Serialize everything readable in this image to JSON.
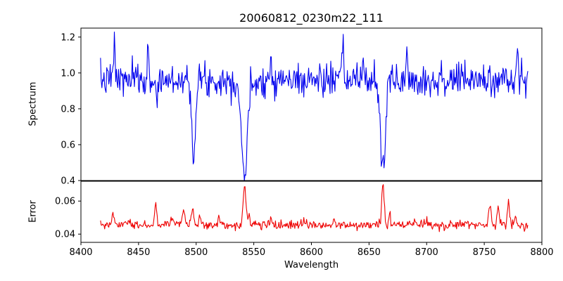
{
  "chart_data": {
    "type": "line",
    "title": "20060812_0230m22_111",
    "xlabel": "Wavelength",
    "xlim": [
      8400,
      8800
    ],
    "x_ticks": [
      8400,
      8450,
      8500,
      8550,
      8600,
      8650,
      8700,
      8750,
      8800
    ],
    "x_data_range": [
      8417,
      8788
    ],
    "x_step": 0.6,
    "seed": 7,
    "grid": false,
    "legend": "none",
    "panels": [
      {
        "name": "spectrum",
        "ylabel": "Spectrum",
        "ylim": [
          0.4,
          1.25
        ],
        "y_ticks": [
          0.4,
          0.6,
          0.8,
          1.0,
          1.2
        ],
        "line_color": "#0000ee",
        "baseline": 0.96,
        "noise_amplitude": 0.045,
        "absorption_lines": [
          {
            "center": 8498,
            "depth": 0.4,
            "sigma": 1.6
          },
          {
            "center": 8542,
            "depth": 0.53,
            "sigma": 2.6
          },
          {
            "center": 8662,
            "depth": 0.49,
            "sigma": 2.2
          }
        ],
        "noise_features": [
          {
            "center": 8429,
            "height": 0.21,
            "sigma": 0.7
          },
          {
            "center": 8458,
            "height": 0.12,
            "sigma": 0.7
          },
          {
            "center": 8466,
            "height": -0.13,
            "sigma": 0.7
          },
          {
            "center": 8565,
            "height": 0.13,
            "sigma": 0.7
          },
          {
            "center": 8627,
            "height": 0.16,
            "sigma": 0.7
          },
          {
            "center": 8645,
            "height": 0.12,
            "sigma": 0.7
          },
          {
            "center": 8683,
            "height": 0.14,
            "sigma": 0.7
          },
          {
            "center": 8779,
            "height": 0.2,
            "sigma": 0.7
          }
        ]
      },
      {
        "name": "error",
        "ylabel": "Error",
        "ylim": [
          0.035,
          0.072
        ],
        "y_ticks": [
          0.04,
          0.06
        ],
        "line_color": "#ee0000",
        "baseline": 0.045,
        "noise_amplitude": 0.0012,
        "noise_skew": 0.0008,
        "spikes": [
          {
            "center": 8428,
            "height": 0.006,
            "sigma": 1.0
          },
          {
            "center": 8442,
            "height": 0.003,
            "sigma": 0.8
          },
          {
            "center": 8465,
            "height": 0.012,
            "sigma": 0.9
          },
          {
            "center": 8479,
            "height": 0.005,
            "sigma": 0.8
          },
          {
            "center": 8489,
            "height": 0.008,
            "sigma": 1.2
          },
          {
            "center": 8497,
            "height": 0.009,
            "sigma": 1.0
          },
          {
            "center": 8503,
            "height": 0.005,
            "sigma": 0.8
          },
          {
            "center": 8520,
            "height": 0.004,
            "sigma": 0.8
          },
          {
            "center": 8542,
            "height": 0.025,
            "sigma": 1.2
          },
          {
            "center": 8546,
            "height": 0.006,
            "sigma": 0.8
          },
          {
            "center": 8565,
            "height": 0.004,
            "sigma": 0.8
          },
          {
            "center": 8594,
            "height": 0.003,
            "sigma": 0.8
          },
          {
            "center": 8620,
            "height": 0.003,
            "sigma": 0.8
          },
          {
            "center": 8662,
            "height": 0.024,
            "sigma": 1.1
          },
          {
            "center": 8668,
            "height": 0.005,
            "sigma": 0.8
          },
          {
            "center": 8700,
            "height": 0.003,
            "sigma": 0.8
          },
          {
            "center": 8735,
            "height": 0.003,
            "sigma": 0.8
          },
          {
            "center": 8755,
            "height": 0.012,
            "sigma": 1.0
          },
          {
            "center": 8762,
            "height": 0.01,
            "sigma": 0.9
          },
          {
            "center": 8771,
            "height": 0.014,
            "sigma": 0.9
          },
          {
            "center": 8777,
            "height": 0.006,
            "sigma": 0.8
          }
        ]
      }
    ]
  }
}
